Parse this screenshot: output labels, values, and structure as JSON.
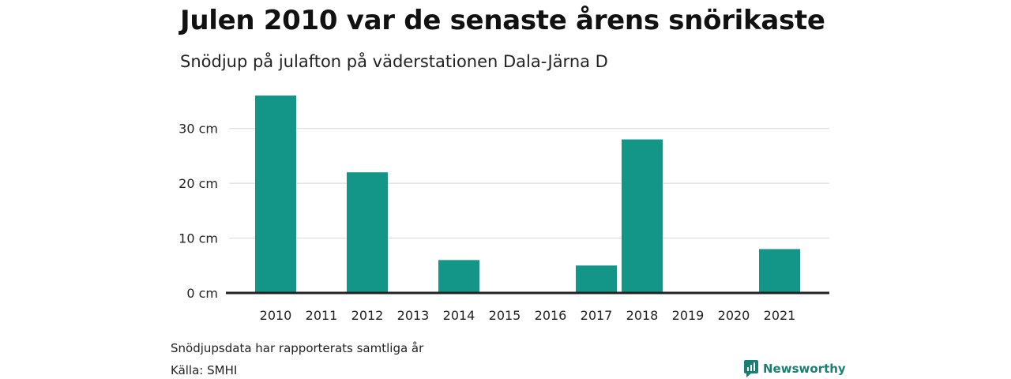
{
  "title": "Julen 2010 var de senaste årens snörikaste",
  "subtitle": "Snödjup på julafton på väderstationen Dala-Järna D",
  "footer": {
    "note": "Snödjupsdata har rapporterats samtliga år",
    "source": "Källa: SMHI",
    "brand": "Newsworthy",
    "brand_icon": "newsworthy-logo-icon"
  },
  "colors": {
    "bar": "#139688",
    "grid": "#dddddd",
    "baseline": "#222222",
    "brand": "#1a7f73"
  },
  "chart_data": {
    "type": "bar",
    "categories": [
      "2010",
      "2011",
      "2012",
      "2013",
      "2014",
      "2015",
      "2016",
      "2017",
      "2018",
      "2019",
      "2020",
      "2021"
    ],
    "values": [
      36,
      0,
      22,
      0,
      6,
      0,
      0,
      5,
      28,
      0,
      0,
      8
    ],
    "ylim": [
      0,
      36
    ],
    "yticks": [
      0,
      10,
      20,
      30
    ],
    "ytick_labels": [
      "0 cm",
      "10 cm",
      "20 cm",
      "30 cm"
    ],
    "grid": true,
    "legend": "none"
  }
}
